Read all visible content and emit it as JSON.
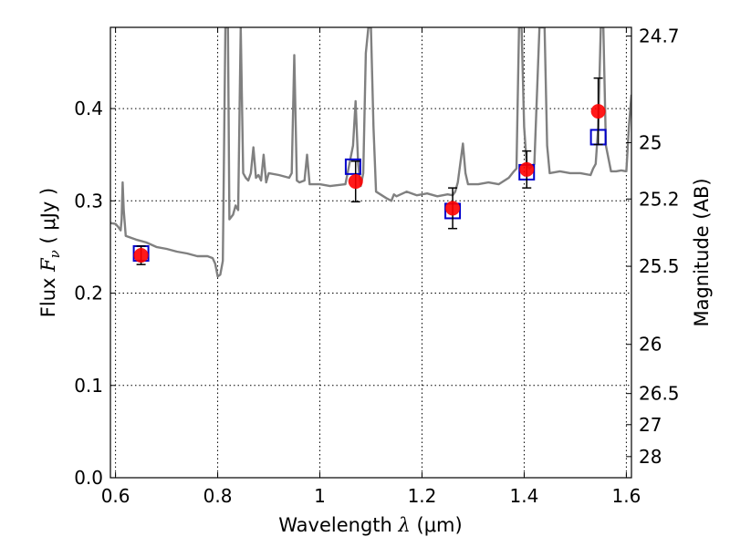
{
  "chart_data": {
    "type": "scatter",
    "xlabel": {
      "prefix": "Wavelength  ",
      "symbol": "λ",
      "unit": " (μm)"
    },
    "ylabel": {
      "prefix": "Flux  ",
      "symbol": "F",
      "sub": "ν",
      "unit": "  ( μJy )"
    },
    "y2label": "Magnitude (AB)",
    "xlim": [
      0.59,
      1.61
    ],
    "ylim": [
      0.0,
      0.488
    ],
    "grid": true,
    "x_ticks": [
      0.6,
      0.8,
      1.0,
      1.2,
      1.4,
      1.6
    ],
    "x_tick_labels": [
      "0.6",
      "0.8",
      "1",
      "1.2",
      "1.4",
      "1.6"
    ],
    "y_ticks": [
      0.0,
      0.1,
      0.2,
      0.3,
      0.4
    ],
    "y_tick_labels": [
      "0.0",
      "0.1",
      "0.2",
      "0.3",
      "0.4"
    ],
    "y2_ticks": [
      {
        "label": "24.7",
        "flux": 0.4786
      },
      {
        "label": "25",
        "flux": 0.3631
      },
      {
        "label": "25.2",
        "flux": 0.302
      },
      {
        "label": "25.5",
        "flux": 0.2291
      },
      {
        "label": "26",
        "flux": 0.1445
      },
      {
        "label": "26.5",
        "flux": 0.0912
      },
      {
        "label": "27",
        "flux": 0.0575
      },
      {
        "label": "28",
        "flux": 0.0229
      }
    ],
    "series": [
      {
        "kind": "model_spectrum",
        "color": "#808080",
        "points": [
          [
            0.59,
            0.276
          ],
          [
            0.6,
            0.275
          ],
          [
            0.605,
            0.272
          ],
          [
            0.61,
            0.268
          ],
          [
            0.612,
            0.28
          ],
          [
            0.614,
            0.32
          ],
          [
            0.616,
            0.29
          ],
          [
            0.62,
            0.262
          ],
          [
            0.64,
            0.258
          ],
          [
            0.66,
            0.255
          ],
          [
            0.68,
            0.25
          ],
          [
            0.7,
            0.248
          ],
          [
            0.72,
            0.245
          ],
          [
            0.74,
            0.243
          ],
          [
            0.76,
            0.24
          ],
          [
            0.78,
            0.24
          ],
          [
            0.79,
            0.238
          ],
          [
            0.795,
            0.232
          ],
          [
            0.8,
            0.218
          ],
          [
            0.805,
            0.22
          ],
          [
            0.81,
            0.235
          ],
          [
            0.815,
            0.488
          ],
          [
            0.82,
            0.488
          ],
          [
            0.823,
            0.28
          ],
          [
            0.83,
            0.285
          ],
          [
            0.835,
            0.295
          ],
          [
            0.84,
            0.29
          ],
          [
            0.845,
            0.488
          ],
          [
            0.85,
            0.33
          ],
          [
            0.855,
            0.325
          ],
          [
            0.86,
            0.322
          ],
          [
            0.865,
            0.33
          ],
          [
            0.87,
            0.358
          ],
          [
            0.875,
            0.325
          ],
          [
            0.88,
            0.328
          ],
          [
            0.885,
            0.322
          ],
          [
            0.89,
            0.35
          ],
          [
            0.895,
            0.32
          ],
          [
            0.9,
            0.33
          ],
          [
            0.92,
            0.328
          ],
          [
            0.94,
            0.325
          ],
          [
            0.945,
            0.33
          ],
          [
            0.95,
            0.458
          ],
          [
            0.955,
            0.322
          ],
          [
            0.96,
            0.32
          ],
          [
            0.97,
            0.322
          ],
          [
            0.975,
            0.35
          ],
          [
            0.98,
            0.318
          ],
          [
            1.0,
            0.318
          ],
          [
            1.02,
            0.316
          ],
          [
            1.05,
            0.318
          ],
          [
            1.065,
            0.36
          ],
          [
            1.07,
            0.408
          ],
          [
            1.075,
            0.34
          ],
          [
            1.08,
            0.316
          ],
          [
            1.085,
            0.33
          ],
          [
            1.09,
            0.46
          ],
          [
            1.095,
            0.488
          ],
          [
            1.1,
            0.488
          ],
          [
            1.105,
            0.38
          ],
          [
            1.11,
            0.31
          ],
          [
            1.13,
            0.303
          ],
          [
            1.14,
            0.3
          ],
          [
            1.145,
            0.307
          ],
          [
            1.15,
            0.305
          ],
          [
            1.17,
            0.31
          ],
          [
            1.19,
            0.306
          ],
          [
            1.21,
            0.308
          ],
          [
            1.23,
            0.305
          ],
          [
            1.25,
            0.307
          ],
          [
            1.26,
            0.306
          ],
          [
            1.265,
            0.31
          ],
          [
            1.27,
            0.32
          ],
          [
            1.28,
            0.362
          ],
          [
            1.285,
            0.33
          ],
          [
            1.29,
            0.318
          ],
          [
            1.31,
            0.318
          ],
          [
            1.33,
            0.32
          ],
          [
            1.35,
            0.318
          ],
          [
            1.37,
            0.325
          ],
          [
            1.38,
            0.332
          ],
          [
            1.385,
            0.335
          ],
          [
            1.39,
            0.488
          ],
          [
            1.395,
            0.488
          ],
          [
            1.4,
            0.38
          ],
          [
            1.405,
            0.34
          ],
          [
            1.41,
            0.335
          ],
          [
            1.42,
            0.34
          ],
          [
            1.43,
            0.488
          ],
          [
            1.44,
            0.488
          ],
          [
            1.445,
            0.36
          ],
          [
            1.45,
            0.33
          ],
          [
            1.47,
            0.332
          ],
          [
            1.49,
            0.33
          ],
          [
            1.51,
            0.33
          ],
          [
            1.53,
            0.328
          ],
          [
            1.535,
            0.335
          ],
          [
            1.54,
            0.34
          ],
          [
            1.545,
            0.38
          ],
          [
            1.55,
            0.488
          ],
          [
            1.555,
            0.488
          ],
          [
            1.56,
            0.36
          ],
          [
            1.57,
            0.332
          ],
          [
            1.58,
            0.332
          ],
          [
            1.59,
            0.333
          ],
          [
            1.6,
            0.332
          ],
          [
            1.605,
            0.38
          ],
          [
            1.61,
            0.415
          ]
        ]
      },
      {
        "kind": "observed_flux",
        "color": "#ff0000",
        "points": [
          {
            "x": 0.65,
            "y": 0.241,
            "err": 0.01
          },
          {
            "x": 1.07,
            "y": 0.321,
            "err": 0.022
          },
          {
            "x": 1.26,
            "y": 0.292,
            "err": 0.022
          },
          {
            "x": 1.405,
            "y": 0.334,
            "err": 0.02
          },
          {
            "x": 1.545,
            "y": 0.397,
            "err": 0.036
          }
        ]
      },
      {
        "kind": "model_synthetic_flux",
        "color": "#0000cc",
        "points": [
          {
            "x": 0.65,
            "y": 0.243
          },
          {
            "x": 1.065,
            "y": 0.337
          },
          {
            "x": 1.26,
            "y": 0.289
          },
          {
            "x": 1.405,
            "y": 0.331
          },
          {
            "x": 1.545,
            "y": 0.369
          }
        ]
      }
    ]
  }
}
